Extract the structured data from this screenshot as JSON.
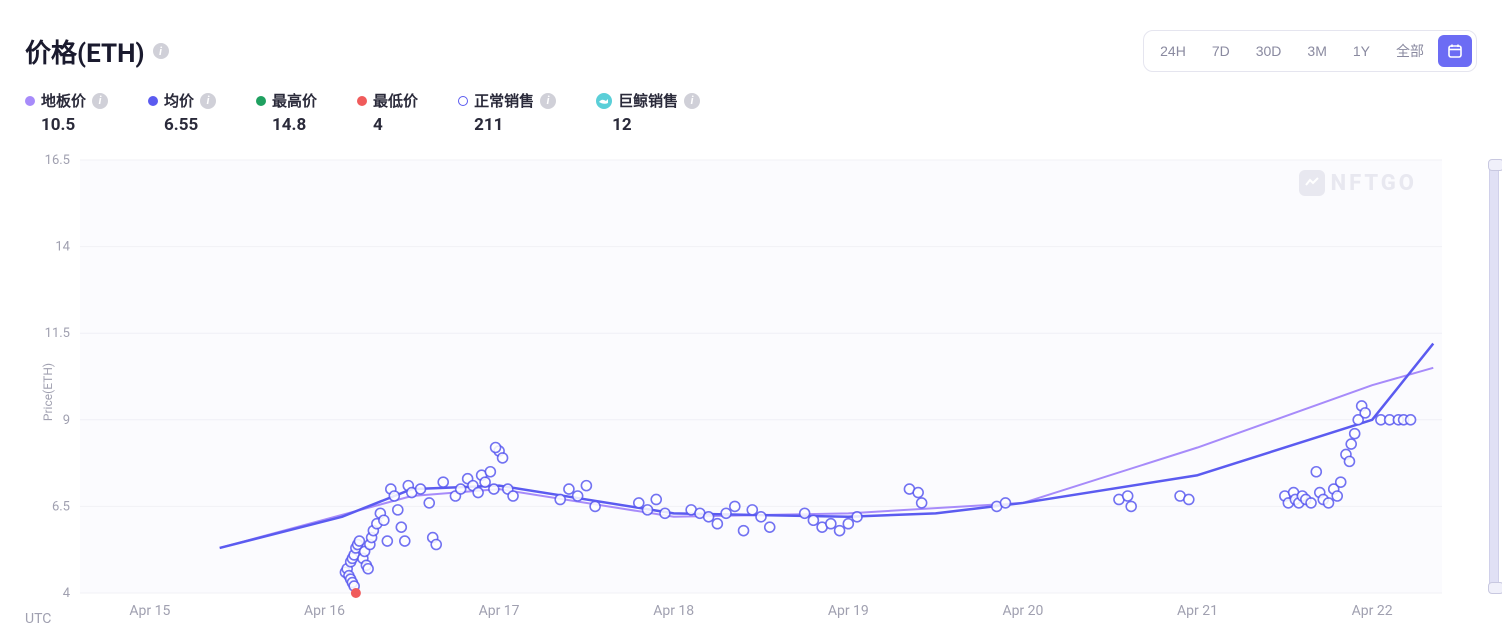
{
  "title": "价格(ETH)",
  "watermark": "NFTGO",
  "range_options": [
    "24H",
    "7D",
    "30D",
    "3M",
    "1Y",
    "全部"
  ],
  "legend": [
    {
      "key": "floor",
      "label": "地板价",
      "value": "10.5",
      "color": "#a78bfa",
      "shape": "dot",
      "info": true
    },
    {
      "key": "avg",
      "label": "均价",
      "value": "6.55",
      "color": "#5b5bf0",
      "shape": "dot",
      "info": true
    },
    {
      "key": "max",
      "label": "最高价",
      "value": "14.8",
      "color": "#1fa060",
      "shape": "dot",
      "info": false
    },
    {
      "key": "min",
      "label": "最低价",
      "value": "4",
      "color": "#f05b5b",
      "shape": "dot",
      "info": false
    },
    {
      "key": "normal",
      "label": "正常销售",
      "value": "211",
      "color": "#5b5bf0",
      "shape": "ring",
      "info": true
    },
    {
      "key": "whale",
      "label": "巨鲸销售",
      "value": "12",
      "color": "#5bcfd8",
      "shape": "whale",
      "info": true
    }
  ],
  "chart": {
    "type": "line+scatter",
    "background_color": "#fbfbfe",
    "grid_color": "#f0f0f5",
    "text_color": "#a0a0b0",
    "ylabel": "Price(ETH)",
    "utc_label": "UTC",
    "ylim": [
      4,
      16.5
    ],
    "yticks": [
      4,
      6.5,
      9,
      11.5,
      14,
      16.5
    ],
    "x_start": 14.6,
    "x_end": 22.4,
    "xticks": [
      {
        "x": 15,
        "label": "Apr 15"
      },
      {
        "x": 16,
        "label": "Apr 16"
      },
      {
        "x": 17,
        "label": "Apr 17"
      },
      {
        "x": 18,
        "label": "Apr 18"
      },
      {
        "x": 19,
        "label": "Apr 19"
      },
      {
        "x": 20,
        "label": "Apr 20"
      },
      {
        "x": 21,
        "label": "Apr 21"
      },
      {
        "x": 22,
        "label": "Apr 22"
      }
    ],
    "lines": {
      "floor": {
        "color": "#a78bfa",
        "width": 2,
        "points": [
          [
            15.4,
            5.3
          ],
          [
            16.5,
            6.8
          ],
          [
            17.0,
            7.0
          ],
          [
            18.0,
            6.2
          ],
          [
            19.0,
            6.3
          ],
          [
            20.0,
            6.6
          ],
          [
            21.0,
            8.2
          ],
          [
            22.0,
            10.0
          ],
          [
            22.35,
            10.5
          ]
        ]
      },
      "avg": {
        "color": "#5b5bf0",
        "width": 2.5,
        "points": [
          [
            15.4,
            5.3
          ],
          [
            16.1,
            6.2
          ],
          [
            16.5,
            7.0
          ],
          [
            17.0,
            7.1
          ],
          [
            18.0,
            6.3
          ],
          [
            19.0,
            6.2
          ],
          [
            19.5,
            6.3
          ],
          [
            20.0,
            6.6
          ],
          [
            21.0,
            7.4
          ],
          [
            22.0,
            9.0
          ],
          [
            22.35,
            11.2
          ]
        ]
      }
    },
    "scatter_style": {
      "stroke": "#5b5bf0",
      "fill": "#ffffff",
      "r": 5,
      "stroke_width": 1.6,
      "opacity": 0.85
    },
    "scatter": [
      [
        16.12,
        4.6
      ],
      [
        16.13,
        4.7
      ],
      [
        16.14,
        4.5
      ],
      [
        16.15,
        4.9
      ],
      [
        16.16,
        5.0
      ],
      [
        16.17,
        5.1
      ],
      [
        16.18,
        5.3
      ],
      [
        16.19,
        5.4
      ],
      [
        16.2,
        5.5
      ],
      [
        16.15,
        4.4
      ],
      [
        16.16,
        4.3
      ],
      [
        16.17,
        4.2
      ],
      [
        16.22,
        5.0
      ],
      [
        16.23,
        5.2
      ],
      [
        16.24,
        4.8
      ],
      [
        16.25,
        4.7
      ],
      [
        16.26,
        5.4
      ],
      [
        16.27,
        5.6
      ],
      [
        16.28,
        5.8
      ],
      [
        16.3,
        6.0
      ],
      [
        16.32,
        6.3
      ],
      [
        16.34,
        6.1
      ],
      [
        16.36,
        5.5
      ],
      [
        16.38,
        7.0
      ],
      [
        16.4,
        6.8
      ],
      [
        16.42,
        6.4
      ],
      [
        16.44,
        5.9
      ],
      [
        16.46,
        5.5
      ],
      [
        16.48,
        7.1
      ],
      [
        16.5,
        6.9
      ],
      [
        16.55,
        7.0
      ],
      [
        16.6,
        6.6
      ],
      [
        16.62,
        5.6
      ],
      [
        16.64,
        5.4
      ],
      [
        16.68,
        7.2
      ],
      [
        16.75,
        6.8
      ],
      [
        16.78,
        7.0
      ],
      [
        16.82,
        7.3
      ],
      [
        16.85,
        7.1
      ],
      [
        16.88,
        6.9
      ],
      [
        16.9,
        7.4
      ],
      [
        16.92,
        7.2
      ],
      [
        16.95,
        7.5
      ],
      [
        16.97,
        7.0
      ],
      [
        17.0,
        8.1
      ],
      [
        17.02,
        7.9
      ],
      [
        16.98,
        8.2
      ],
      [
        17.05,
        7.0
      ],
      [
        17.08,
        6.8
      ],
      [
        17.35,
        6.7
      ],
      [
        17.4,
        7.0
      ],
      [
        17.45,
        6.8
      ],
      [
        17.5,
        7.1
      ],
      [
        17.55,
        6.5
      ],
      [
        17.8,
        6.6
      ],
      [
        17.85,
        6.4
      ],
      [
        17.9,
        6.7
      ],
      [
        17.95,
        6.3
      ],
      [
        18.1,
        6.4
      ],
      [
        18.15,
        6.3
      ],
      [
        18.2,
        6.2
      ],
      [
        18.25,
        6.0
      ],
      [
        18.3,
        6.3
      ],
      [
        18.35,
        6.5
      ],
      [
        18.4,
        5.8
      ],
      [
        18.45,
        6.4
      ],
      [
        18.5,
        6.2
      ],
      [
        18.55,
        5.9
      ],
      [
        18.75,
        6.3
      ],
      [
        18.8,
        6.1
      ],
      [
        18.85,
        5.9
      ],
      [
        18.9,
        6.0
      ],
      [
        18.95,
        5.8
      ],
      [
        19.0,
        6.0
      ],
      [
        19.05,
        6.2
      ],
      [
        19.35,
        7.0
      ],
      [
        19.4,
        6.9
      ],
      [
        19.42,
        6.6
      ],
      [
        19.85,
        6.5
      ],
      [
        19.9,
        6.6
      ],
      [
        20.55,
        6.7
      ],
      [
        20.6,
        6.8
      ],
      [
        20.62,
        6.5
      ],
      [
        20.9,
        6.8
      ],
      [
        20.95,
        6.7
      ],
      [
        21.5,
        6.8
      ],
      [
        21.52,
        6.6
      ],
      [
        21.55,
        6.9
      ],
      [
        21.56,
        6.7
      ],
      [
        21.58,
        6.6
      ],
      [
        21.6,
        6.8
      ],
      [
        21.62,
        6.7
      ],
      [
        21.65,
        6.6
      ],
      [
        21.68,
        7.5
      ],
      [
        21.7,
        6.9
      ],
      [
        21.72,
        6.7
      ],
      [
        21.75,
        6.6
      ],
      [
        21.78,
        7.0
      ],
      [
        21.8,
        6.8
      ],
      [
        21.82,
        7.2
      ],
      [
        21.85,
        8.0
      ],
      [
        21.87,
        7.8
      ],
      [
        21.88,
        8.3
      ],
      [
        21.9,
        8.6
      ],
      [
        21.92,
        9.0
      ],
      [
        21.94,
        9.4
      ],
      [
        21.96,
        9.2
      ],
      [
        22.05,
        9.0
      ],
      [
        22.1,
        9.0
      ],
      [
        22.15,
        9.0
      ],
      [
        22.18,
        9.0
      ],
      [
        22.22,
        9.0
      ]
    ],
    "special_points": [
      {
        "x": 16.18,
        "y": 4.0,
        "color": "#f05b5b",
        "r": 5
      }
    ]
  }
}
